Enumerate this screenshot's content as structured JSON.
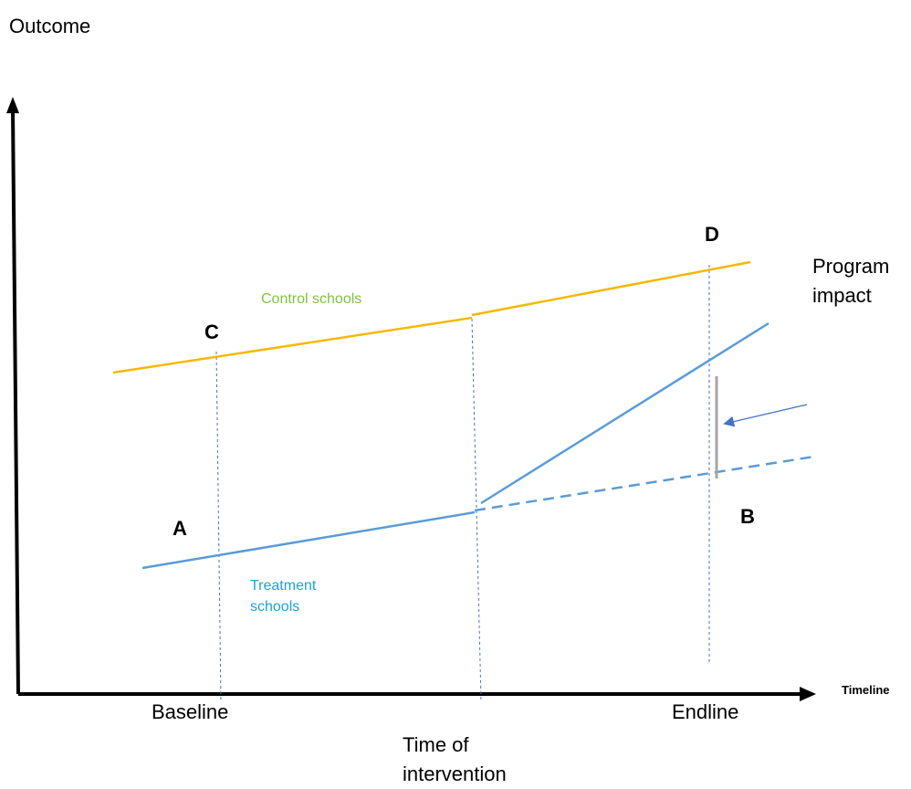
{
  "axes": {
    "y_title": "Outcome",
    "x_title": "Timeline",
    "ticks": {
      "baseline": "Baseline",
      "intervention": "Time of intervention",
      "endline": "Endline"
    }
  },
  "points": {
    "a": "A",
    "b": "B",
    "c": "C",
    "d": "D"
  },
  "series": {
    "control": "Control schools",
    "treatment": "Treatment schools"
  },
  "annotation": {
    "impact": "Program impact"
  },
  "colors": {
    "control_line": "#f5b800",
    "treatment_line": "#5b9bd5",
    "control_label": "#7fc241",
    "treatment_label": "#1aa3d9",
    "impact_bar": "#a6a6a6",
    "guide_lines": "#4472c4",
    "axes": "#000000"
  }
}
